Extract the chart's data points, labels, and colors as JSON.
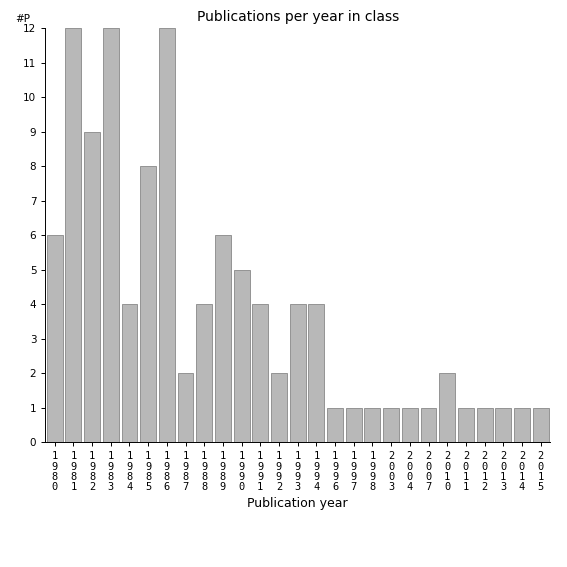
{
  "years": [
    1980,
    1981,
    1982,
    1983,
    1984,
    1985,
    1986,
    1987,
    1988,
    1989,
    1990,
    1991,
    1992,
    1993,
    1994,
    1996,
    1997,
    1998,
    2003,
    2004,
    2007,
    2010,
    2011,
    2012,
    2013,
    2014,
    2015
  ],
  "values": [
    6,
    12,
    9,
    12,
    4,
    8,
    12,
    2,
    4,
    6,
    5,
    4,
    2,
    4,
    4,
    1,
    1,
    1,
    1,
    1,
    1,
    2,
    1,
    1,
    1,
    1,
    1
  ],
  "bar_color": "#b8b8b8",
  "bar_edge_color": "#888888",
  "title": "Publications per year in class",
  "xlabel": "Publication year",
  "ylabel": "#P",
  "ylim": [
    0,
    12
  ],
  "yticks": [
    0,
    1,
    2,
    3,
    4,
    5,
    6,
    7,
    8,
    9,
    10,
    11,
    12
  ],
  "bg_color": "#ffffff",
  "title_fontsize": 10,
  "axis_label_fontsize": 9,
  "tick_fontsize": 7.5
}
